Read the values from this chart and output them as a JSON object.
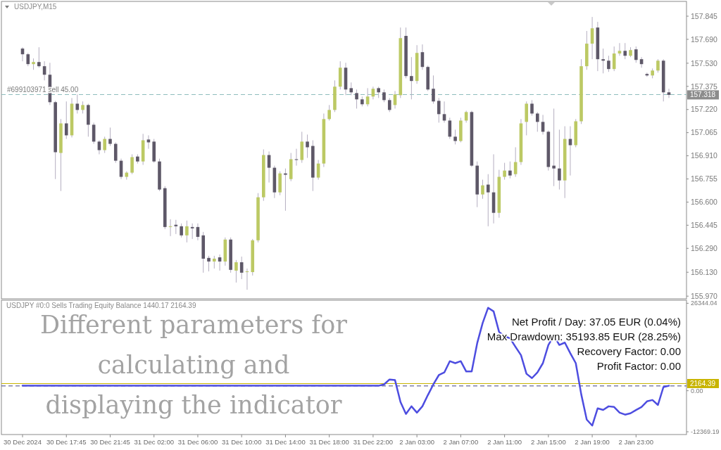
{
  "chart_data": [
    {
      "type": "candlestick",
      "title": "USDJPY,M15",
      "tick_labels": "y",
      "categories": [
        null,
        null,
        null,
        null,
        null,
        null,
        null,
        null,
        null,
        null,
        null,
        null,
        null,
        null,
        null,
        null,
        null,
        null,
        null,
        null,
        null,
        null,
        null,
        null,
        null,
        null,
        null,
        null,
        null,
        null,
        null,
        null,
        null,
        null,
        null,
        null,
        null,
        null,
        null,
        null,
        null,
        null,
        null,
        null,
        null,
        null,
        null,
        null,
        null,
        null,
        null,
        null,
        null,
        null,
        null,
        null,
        null,
        null,
        null,
        null,
        null,
        null,
        null,
        null,
        null,
        null,
        null,
        null,
        null,
        null,
        null,
        null,
        null,
        null,
        null,
        null,
        null,
        null,
        null,
        null,
        null,
        null,
        null,
        null,
        null,
        null,
        null,
        null,
        null,
        null,
        null,
        null,
        null,
        null,
        null,
        null,
        null,
        null,
        null,
        null,
        null,
        null,
        null,
        null,
        null,
        null,
        null,
        null,
        null,
        null,
        null,
        null,
        null,
        null,
        null,
        null,
        null,
        null,
        null
      ],
      "ohlc": [
        [
          157.628,
          157.637,
          157.543,
          157.59
        ],
        [
          157.59,
          157.599,
          157.51,
          157.524
        ],
        [
          157.524,
          157.562,
          157.486,
          157.538
        ],
        [
          157.538,
          157.637,
          157.5,
          157.51
        ],
        [
          157.51,
          157.543,
          157.415,
          157.453
        ],
        [
          157.453,
          157.533,
          157.25,
          157.269
        ],
        [
          157.269,
          157.278,
          156.754,
          156.934
        ],
        [
          156.929,
          157.156,
          156.674,
          157.127
        ],
        [
          157.127,
          157.274,
          157.023,
          157.047
        ],
        [
          157.047,
          157.297,
          157.033,
          157.259
        ],
        [
          157.259,
          157.321,
          157.193,
          157.217
        ],
        [
          157.217,
          157.274,
          157.193,
          157.25
        ],
        [
          157.25,
          157.259,
          157.038,
          157.118
        ],
        [
          157.118,
          157.132,
          156.99,
          157.005
        ],
        [
          157.005,
          157.014,
          156.92,
          156.948
        ],
        [
          156.948,
          157.038,
          156.929,
          157.023
        ],
        [
          157.023,
          157.099,
          156.976,
          156.99
        ],
        [
          156.99,
          157.0,
          156.863,
          156.877
        ],
        [
          156.877,
          156.891,
          156.754,
          156.769
        ],
        [
          156.769,
          156.806,
          156.75,
          156.797
        ],
        [
          156.797,
          156.92,
          156.787,
          156.901
        ],
        [
          156.905,
          156.92,
          156.858,
          156.872
        ],
        [
          156.872,
          157.057,
          156.849,
          157.014
        ],
        [
          157.019,
          157.047,
          156.957,
          157.0
        ],
        [
          157.005,
          157.023,
          156.863,
          156.872
        ],
        [
          156.872,
          156.891,
          156.674,
          156.684
        ],
        [
          156.693,
          156.707,
          156.419,
          156.433
        ],
        [
          156.433,
          156.485,
          156.372,
          156.438
        ],
        [
          156.448,
          156.481,
          156.386,
          156.438
        ],
        [
          156.438,
          156.457,
          156.363,
          156.377
        ],
        [
          156.377,
          156.476,
          156.33,
          156.438
        ],
        [
          156.433,
          156.457,
          156.353,
          156.424
        ],
        [
          156.433,
          156.457,
          156.344,
          156.367
        ],
        [
          156.377,
          156.4,
          156.127,
          156.221
        ],
        [
          156.226,
          156.24,
          156.136,
          156.202
        ],
        [
          156.202,
          156.24,
          156.155,
          156.221
        ],
        [
          156.23,
          156.249,
          156.141,
          156.202
        ],
        [
          156.202,
          156.363,
          156.174,
          156.349
        ],
        [
          156.349,
          156.363,
          156.127,
          156.146
        ],
        [
          156.141,
          156.212,
          156.061,
          156.197
        ],
        [
          156.197,
          156.235,
          156.084,
          156.127
        ],
        [
          156.131,
          156.155,
          156.013,
          156.136
        ],
        [
          156.131,
          156.353,
          156.108,
          156.344
        ],
        [
          156.344,
          156.66,
          156.33,
          156.632
        ],
        [
          156.632,
          156.953,
          156.608,
          156.915
        ],
        [
          156.915,
          156.939,
          156.731,
          156.83
        ],
        [
          156.83,
          156.844,
          156.627,
          156.665
        ],
        [
          156.665,
          156.806,
          156.646,
          156.792
        ],
        [
          156.792,
          156.825,
          156.542,
          156.783
        ],
        [
          156.754,
          156.929,
          156.74,
          156.887
        ],
        [
          156.887,
          156.957,
          156.844,
          156.882
        ],
        [
          156.882,
          157.071,
          156.863,
          157.005
        ],
        [
          157.005,
          157.052,
          156.896,
          156.967
        ],
        [
          156.976,
          157.014,
          156.674,
          156.764
        ],
        [
          156.764,
          156.882,
          156.75,
          156.858
        ],
        [
          156.858,
          157.193,
          156.835,
          157.156
        ],
        [
          157.156,
          157.25,
          157.146,
          157.217
        ],
        [
          157.217,
          157.415,
          157.203,
          157.373
        ],
        [
          157.373,
          157.543,
          157.354,
          157.5
        ],
        [
          157.5,
          157.533,
          157.316,
          157.354
        ],
        [
          157.363,
          157.401,
          157.316,
          157.335
        ],
        [
          157.33,
          157.354,
          157.226,
          157.288
        ],
        [
          157.288,
          157.307,
          157.241,
          157.255
        ],
        [
          157.255,
          157.363,
          157.241,
          157.307
        ],
        [
          157.307,
          157.373,
          157.288,
          157.359
        ],
        [
          157.363,
          157.373,
          157.297,
          157.335
        ],
        [
          157.335,
          157.354,
          157.269,
          157.283
        ],
        [
          157.283,
          157.297,
          157.203,
          157.217
        ],
        [
          157.25,
          157.344,
          157.226,
          157.321
        ],
        [
          157.316,
          157.769,
          157.297,
          157.698
        ],
        [
          157.713,
          157.769,
          157.429,
          157.444
        ],
        [
          157.444,
          157.571,
          157.288,
          157.411
        ],
        [
          157.411,
          157.651,
          157.392,
          157.599
        ],
        [
          157.604,
          157.656,
          157.486,
          157.505
        ],
        [
          157.505,
          157.514,
          157.344,
          157.354
        ],
        [
          157.359,
          157.448,
          157.259,
          157.274
        ],
        [
          157.278,
          157.297,
          157.132,
          157.189
        ],
        [
          157.189,
          157.274,
          157.132,
          157.146
        ],
        [
          157.146,
          157.165,
          157.023,
          157.038
        ],
        [
          157.038,
          157.085,
          156.986,
          157.009
        ],
        [
          157.009,
          157.165,
          157.0,
          157.146
        ],
        [
          157.146,
          157.212,
          157.132,
          157.203
        ],
        [
          157.203,
          157.212,
          156.835,
          156.844
        ],
        [
          156.844,
          156.872,
          156.566,
          156.651
        ],
        [
          156.651,
          156.75,
          156.622,
          156.712
        ],
        [
          156.717,
          156.787,
          156.438,
          156.665
        ],
        [
          156.665,
          156.92,
          156.457,
          156.528
        ],
        [
          156.528,
          156.816,
          156.495,
          156.769
        ],
        [
          156.769,
          156.863,
          156.75,
          156.811
        ],
        [
          156.811,
          156.872,
          156.759,
          156.778
        ],
        [
          156.787,
          156.967,
          156.769,
          156.868
        ],
        [
          156.868,
          157.156,
          156.849,
          157.127
        ],
        [
          157.137,
          157.274,
          157.047,
          157.259
        ],
        [
          157.259,
          157.283,
          157.179,
          157.193
        ],
        [
          157.193,
          157.203,
          157.071,
          157.137
        ],
        [
          157.137,
          157.184,
          157.052,
          157.071
        ],
        [
          157.071,
          157.08,
          156.811,
          156.835
        ],
        [
          156.844,
          157.226,
          156.707,
          156.825
        ],
        [
          156.825,
          157.085,
          156.684,
          156.745
        ],
        [
          156.745,
          157.108,
          156.627,
          157.023
        ],
        [
          157.023,
          157.108,
          156.778,
          156.981
        ],
        [
          156.981,
          157.156,
          156.967,
          157.141
        ],
        [
          157.141,
          157.557,
          157.123,
          157.51
        ],
        [
          157.51,
          157.746,
          157.486,
          157.661
        ],
        [
          157.661,
          157.84,
          157.557,
          157.764
        ],
        [
          157.769,
          157.807,
          157.477,
          157.557
        ],
        [
          157.557,
          157.628,
          157.462,
          157.547
        ],
        [
          157.547,
          157.58,
          157.472,
          157.491
        ],
        [
          157.491,
          157.642,
          157.477,
          157.595
        ],
        [
          157.595,
          157.665,
          157.58,
          157.613
        ],
        [
          157.613,
          157.665,
          157.557,
          157.58
        ],
        [
          157.58,
          157.637,
          157.571,
          157.618
        ],
        [
          157.623,
          157.642,
          157.533,
          157.552
        ],
        [
          157.557,
          157.571,
          157.5,
          157.524
        ],
        [
          157.458,
          157.467,
          157.439,
          157.448
        ],
        [
          157.448,
          157.495,
          157.429,
          157.481
        ],
        [
          157.481,
          157.557,
          157.467,
          157.547
        ],
        [
          157.547,
          157.557,
          157.274,
          157.335
        ],
        [
          157.335,
          157.359,
          157.297,
          157.318
        ]
      ],
      "ylim": [
        155.952,
        157.944
      ],
      "yticks": [
        157.845,
        {
          "value": 157.69,
          "label": "157.690"
        },
        {
          "value": 157.53,
          "label": "157.530"
        },
        157.375,
        {
          "value": 157.22,
          "label": "157.220"
        },
        157.065,
        {
          "value": 156.91,
          "label": "156.910"
        },
        156.755,
        {
          "value": 156.6,
          "label": "156.600"
        },
        156.445,
        {
          "value": 156.29,
          "label": "156.290"
        },
        {
          "value": 156.13,
          "label": "156.130"
        },
        {
          "value": 155.97,
          "label": "155.970"
        }
      ],
      "ref_lines": [
        {
          "axis": "y",
          "value": 157.32,
          "label": "#699103971 sell 45.00",
          "color": "#8fbcbc",
          "line_style": "dashed"
        }
      ],
      "annotations": [
        "157.318"
      ]
    },
    {
      "type": "line",
      "title": "USDJPY #0:0 Sells Trading Equity Balance 1440.17 2164.39",
      "categories": [
        "30 Dec 2024",
        null,
        null,
        null,
        null,
        null,
        null,
        null,
        "30 Dec 17:45",
        null,
        null,
        null,
        null,
        null,
        null,
        null,
        "30 Dec 21:45",
        null,
        null,
        null,
        null,
        null,
        null,
        null,
        "31 Dec 02:00",
        null,
        null,
        null,
        null,
        null,
        null,
        null,
        "31 Dec 06:00",
        null,
        null,
        null,
        null,
        null,
        null,
        null,
        "31 Dec 10:00",
        null,
        null,
        null,
        null,
        null,
        null,
        null,
        "31 Dec 14:00",
        null,
        null,
        null,
        null,
        null,
        null,
        null,
        "31 Dec 18:00",
        null,
        null,
        null,
        null,
        null,
        null,
        null,
        "31 Dec 22:00",
        null,
        null,
        null,
        null,
        null,
        null,
        null,
        "2 Jan 03:00",
        null,
        null,
        null,
        null,
        null,
        null,
        null,
        "2 Jan 07:00",
        null,
        null,
        null,
        null,
        null,
        null,
        null,
        "2 Jan 11:00",
        null,
        null,
        null,
        null,
        null,
        null,
        null,
        "2 Jan 15:00",
        null,
        null,
        null,
        null,
        null,
        null,
        null,
        "2 Jan 19:00",
        null,
        null,
        null,
        null,
        null,
        null,
        null,
        "2 Jan 23:00",
        null,
        null,
        null,
        null,
        null,
        null
      ],
      "series": [
        {
          "color": "#4d4de0",
          "values": [
            1500,
            1500,
            1500,
            1500,
            1500,
            1500,
            1500,
            1500,
            1500,
            1500,
            1500,
            1500,
            1500,
            1500,
            1500,
            1500,
            1500,
            1500,
            1500,
            1500,
            1500,
            1500,
            1500,
            1500,
            1500,
            1500,
            1500,
            1500,
            1500,
            1500,
            1500,
            1500,
            1500,
            1500,
            1500,
            1500,
            1500,
            1500,
            1500,
            1500,
            1500,
            1500,
            1500,
            1500,
            1500,
            1500,
            1500,
            1500,
            1500,
            1500,
            1500,
            1500,
            1500,
            1500,
            1500,
            1500,
            1500,
            1500,
            1500,
            1500,
            1500,
            1500,
            1500,
            1500,
            1500,
            1500,
            1900,
            3400,
            3200,
            -3400,
            -7000,
            -4700,
            -6600,
            -4700,
            -1300,
            1900,
            4700,
            5500,
            8900,
            8300,
            8900,
            5800,
            5800,
            14300,
            20400,
            25000,
            23900,
            17700,
            16400,
            15800,
            13200,
            10700,
            5100,
            3800,
            5500,
            8300,
            13800,
            16600,
            13800,
            14500,
            11300,
            8300,
            -1100,
            -8700,
            -10500,
            -5300,
            -5800,
            -4700,
            -4900,
            -6600,
            -7200,
            -6800,
            -5800,
            -4900,
            -3200,
            -2800,
            -4300,
            1100,
            1500
          ]
        }
      ],
      "ylim": [
        -13200,
        27260
      ],
      "yticks": [
        26344.04,
        {
          "value": 0,
          "label": "0.00"
        },
        -12369.19
      ],
      "ref_lines": [
        {
          "axis": "y",
          "value": 2164.39,
          "label": "2164.39",
          "color": "#c8b400",
          "line_style": "solid"
        },
        {
          "axis": "y",
          "value": 1440.17,
          "color": "#404080",
          "line_style": "dashed"
        }
      ],
      "annotations": [
        "Different parameters for\ncalculating and\ndisplaying the indicator",
        "Net Profit / Day: 37.05 EUR (0.04%)",
        "Max Drawdown: 35193.85 EUR (28.25%)",
        "Recovery Factor: 0.00",
        "Profit Factor: 0.00"
      ]
    }
  ]
}
